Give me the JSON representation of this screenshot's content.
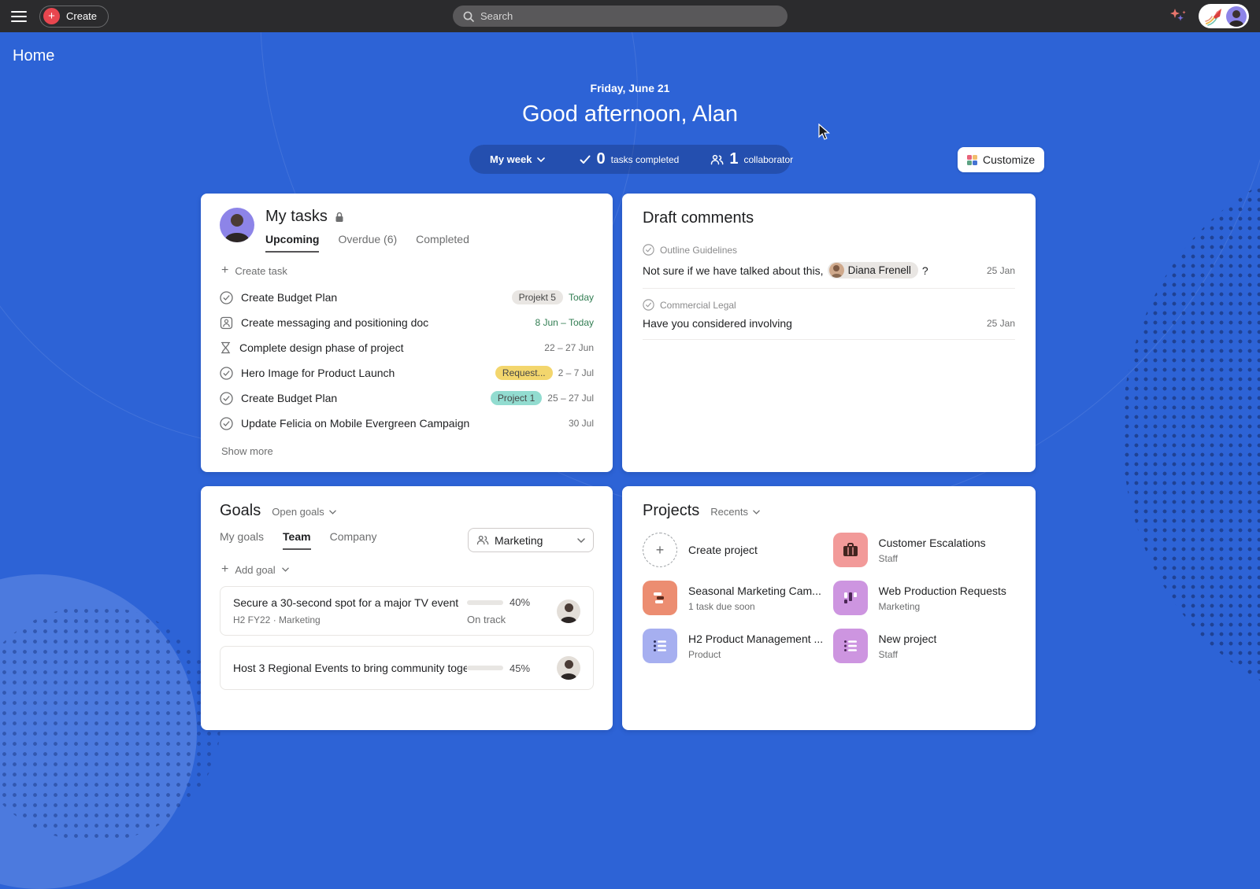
{
  "theme": {
    "background_blue": "#2d63d6",
    "topbar_bg": "#2b2b2d",
    "accent_red": "#e8464f",
    "green_text": "#317d52",
    "badge_yellow": "#f3d66d",
    "badge_teal": "#92dcd0",
    "badge_gray": "#e9e6e3",
    "progress_green": "#58a182",
    "progress_red": "#e0566b",
    "icon_salmon": "#f29a99",
    "icon_coral": "#ec8d71",
    "icon_purple": "#cd95e0",
    "icon_periwinkle": "#a6aff0"
  },
  "topbar": {
    "create_label": "Create",
    "search_placeholder": "Search"
  },
  "header": {
    "page_title": "Home",
    "date": "Friday, June 21",
    "greeting": "Good afternoon, Alan",
    "stats": {
      "period_label": "My week",
      "tasks_completed_value": "0",
      "tasks_completed_label": "tasks completed",
      "collaborators_value": "1",
      "collaborators_label": "collaborator"
    },
    "customize_label": "Customize"
  },
  "my_tasks": {
    "title": "My tasks",
    "tabs": [
      {
        "label": "Upcoming"
      },
      {
        "label": "Overdue (6)"
      },
      {
        "label": "Completed"
      }
    ],
    "create_task_label": "Create task",
    "tasks": [
      {
        "title": "Create Budget Plan",
        "badge": "Projekt 5",
        "date": "Today"
      },
      {
        "title": "Create messaging and positioning doc",
        "date": "8 Jun – Today"
      },
      {
        "title": "Complete design phase of project",
        "date": "22 – 27 Jun"
      },
      {
        "title": "Hero Image for Product Launch",
        "badge": "Request...",
        "date": "2 – 7 Jul"
      },
      {
        "title": "Create Budget Plan",
        "badge": "Project 1",
        "date": "25 – 27 Jul"
      },
      {
        "title": "Update Felicia on Mobile Evergreen Campaign",
        "date": "30 Jul"
      }
    ],
    "show_more_label": "Show more"
  },
  "draft_comments": {
    "title": "Draft comments",
    "items": [
      {
        "task": "Outline Guidelines",
        "text_before": "Not sure if we have talked about this,",
        "mention": "Diana Frenell",
        "text_after": "?",
        "date": "25 Jan"
      },
      {
        "task": "Commercial Legal",
        "text_before": "Have you considered involving",
        "date": "25 Jan"
      }
    ]
  },
  "goals": {
    "title": "Goals",
    "filter_label": "Open goals",
    "tabs": [
      {
        "label": "My goals"
      },
      {
        "label": "Team"
      },
      {
        "label": "Company"
      }
    ],
    "team_filter": "Marketing",
    "add_goal_label": "Add goal",
    "items": [
      {
        "title": "Secure a 30-second spot for a major TV event",
        "subtitle": "H2 FY22  ·  Marketing",
        "percent": "40%",
        "status": "On track"
      },
      {
        "title": "Host 3 Regional Events to bring community toge...",
        "percent": "45%"
      }
    ]
  },
  "projects": {
    "title": "Projects",
    "filter_label": "Recents",
    "create_label": "Create project",
    "items": [
      {
        "title": "Customer Escalations",
        "subtitle": "Staff"
      },
      {
        "title": "Seasonal Marketing Cam...",
        "subtitle": "1 task due soon"
      },
      {
        "title": "Web Production Requests",
        "subtitle": "Marketing"
      },
      {
        "title": "H2 Product Management ...",
        "subtitle": "Product"
      },
      {
        "title": "New project",
        "subtitle": "Staff"
      }
    ]
  }
}
